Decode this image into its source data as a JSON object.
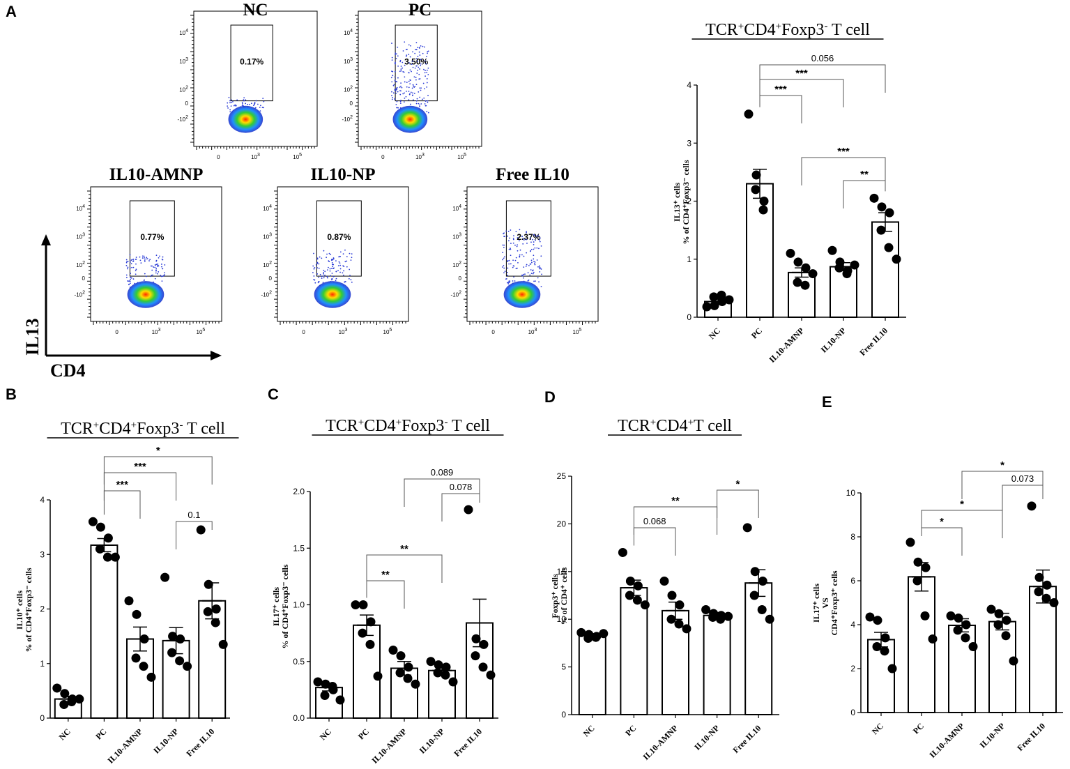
{
  "figure": {
    "panel_labels": {
      "A": "A",
      "B": "B",
      "C": "C",
      "D": "D",
      "E": "E"
    },
    "flow": {
      "y_axis_label": "IL13",
      "x_axis_label": "CD4",
      "x_ticks": [
        "0",
        "10",
        "10",
        "10"
      ],
      "x_tick_exps": [
        "",
        "3",
        "5",
        ""
      ],
      "y_ticks": [
        "10",
        "10",
        "10",
        "0",
        "-10"
      ],
      "y_tick_exps": [
        "4",
        "3",
        "2",
        "",
        "2"
      ],
      "plots": [
        {
          "title": "NC",
          "gate_percent": "0.17%",
          "spread": 0.15
        },
        {
          "title": "PC",
          "gate_percent": "3.50%",
          "spread": 1.0
        },
        {
          "title": "IL10-AMNP",
          "gate_percent": "0.77%",
          "spread": 0.45
        },
        {
          "title": "IL10-NP",
          "gate_percent": "0.87%",
          "spread": 0.5
        },
        {
          "title": "Free IL10",
          "gate_percent": "2.37%",
          "spread": 0.8
        }
      ]
    }
  },
  "chart_data": [
    {
      "id": "A",
      "type": "bar",
      "title_parts": [
        "TCR",
        "+",
        "CD4",
        "+",
        "Foxp3",
        "-",
        " T cell"
      ],
      "ylabel_line1": "IL13⁺ cells",
      "ylabel_line2": "% of CD4⁺Foxp3⁻ cells",
      "categories": [
        "NC",
        "PC",
        "IL10-AMNP",
        "IL10-NP",
        "Free IL10"
      ],
      "values": [
        0.27,
        2.3,
        0.77,
        0.87,
        1.64
      ],
      "errors": [
        0.05,
        0.25,
        0.08,
        0.07,
        0.16
      ],
      "points": [
        [
          0.18,
          0.2,
          0.27,
          0.35,
          0.38,
          0.3
        ],
        [
          3.5,
          2.45,
          2.0,
          2.2,
          1.85
        ],
        [
          1.1,
          0.95,
          0.85,
          0.6,
          0.55,
          0.75
        ],
        [
          1.15,
          0.95,
          0.8,
          0.85,
          0.75,
          0.9
        ],
        [
          2.05,
          1.9,
          1.8,
          1.5,
          1.2,
          1.0
        ]
      ],
      "ylim": [
        0,
        4
      ],
      "yticks": [
        "0",
        "1",
        "2",
        "3",
        "4"
      ],
      "annotations": [
        {
          "from": 1,
          "to": 2,
          "label": "***"
        },
        {
          "from": 1,
          "to": 3,
          "label": "***"
        },
        {
          "from": 1,
          "to": 4,
          "label": "0.056"
        },
        {
          "from": 2,
          "to": 4,
          "label": "***"
        },
        {
          "from": 3,
          "to": 4,
          "label": "**"
        }
      ]
    },
    {
      "id": "B",
      "type": "bar",
      "title_parts": [
        "TCR",
        "+",
        "CD4",
        "+",
        "Foxp3",
        "-",
        " T cell"
      ],
      "ylabel_line1": "IL10⁺ cells",
      "ylabel_line2": "% of CD4⁺Foxp3⁻ cells",
      "categories": [
        "NC",
        "PC",
        "IL10-AMNP",
        "IL10-NP",
        "Free IL10"
      ],
      "values": [
        0.35,
        3.17,
        1.45,
        1.42,
        2.15
      ],
      "errors": [
        0.05,
        0.12,
        0.22,
        0.24,
        0.33
      ],
      "points": [
        [
          0.55,
          0.45,
          0.35,
          0.25,
          0.3,
          0.35
        ],
        [
          3.6,
          3.5,
          3.3,
          3.1,
          2.95,
          2.95
        ],
        [
          2.15,
          1.9,
          1.45,
          1.1,
          0.95,
          0.75
        ],
        [
          2.58,
          1.5,
          1.45,
          1.2,
          1.05,
          0.95
        ],
        [
          3.45,
          2.45,
          2.0,
          1.95,
          1.75,
          1.35
        ]
      ],
      "ylim": [
        0,
        4
      ],
      "yticks": [
        "0",
        "1",
        "2",
        "3",
        "4"
      ],
      "annotations": [
        {
          "from": 1,
          "to": 2,
          "label": "***"
        },
        {
          "from": 1,
          "to": 3,
          "label": "***"
        },
        {
          "from": 1,
          "to": 4,
          "label": "*"
        },
        {
          "from": 3,
          "to": 4,
          "label": "0.1"
        }
      ]
    },
    {
      "id": "C",
      "type": "bar",
      "title_parts": [
        "TCR",
        "+",
        "CD4",
        "+",
        "Foxp3",
        "-",
        " T cell"
      ],
      "ylabel_line1": "IL17⁺ cells",
      "ylabel_line2": "% of CD4⁺Foxp3⁻ cells",
      "categories": [
        "NC",
        "PC",
        "IL10-AMNP",
        "IL10-NP",
        "Free IL10"
      ],
      "values": [
        0.27,
        0.82,
        0.44,
        0.42,
        0.84
      ],
      "errors": [
        0.03,
        0.09,
        0.06,
        0.04,
        0.21
      ],
      "points": [
        [
          0.32,
          0.3,
          0.25,
          0.2,
          0.28,
          0.16
        ],
        [
          1.0,
          1.0,
          0.85,
          0.75,
          0.65,
          0.37
        ],
        [
          0.6,
          0.55,
          0.45,
          0.4,
          0.35,
          0.3
        ],
        [
          0.5,
          0.47,
          0.45,
          0.4,
          0.38,
          0.32
        ],
        [
          1.84,
          0.7,
          0.65,
          0.55,
          0.45,
          0.38
        ]
      ],
      "ylim": [
        0,
        2.0
      ],
      "yticks": [
        "0.0",
        "0.5",
        "1.0",
        "1.5",
        "2.0"
      ],
      "annotations": [
        {
          "from": 1,
          "to": 2,
          "label": "**"
        },
        {
          "from": 1,
          "to": 3,
          "label": "**"
        },
        {
          "from": 2,
          "to": 4,
          "label": "0.089"
        },
        {
          "from": 3,
          "to": 4,
          "label": "0.078"
        }
      ]
    },
    {
      "id": "D",
      "type": "bar",
      "title_parts": [
        "TCR",
        "+",
        "CD4",
        "+",
        "T cell"
      ],
      "ylabel_line1": "Foxp3⁺ cells",
      "ylabel_line2": "% of CD4⁺ cells",
      "categories": [
        "NC",
        "PC",
        "IL10-AMNP",
        "IL10-NP",
        "Free IL10"
      ],
      "values": [
        8.3,
        13.3,
        10.9,
        10.4,
        13.8
      ],
      "errors": [
        0.2,
        0.8,
        0.9,
        0.3,
        1.4
      ],
      "points": [
        [
          8.6,
          8.4,
          8.2,
          8.0,
          8.1,
          8.5
        ],
        [
          17.0,
          14.0,
          13.5,
          12.5,
          12.0,
          11.5
        ],
        [
          14.0,
          12.5,
          11.5,
          10.0,
          9.5,
          9.0
        ],
        [
          11.0,
          10.6,
          10.4,
          10.2,
          10.0,
          10.3
        ],
        [
          19.6,
          15.0,
          14.0,
          12.5,
          11.0,
          10.0
        ]
      ],
      "ylim": [
        0,
        25
      ],
      "yticks": [
        "0",
        "5",
        "10",
        "15",
        "20",
        "25"
      ],
      "annotations": [
        {
          "from": 1,
          "to": 2,
          "label": "0.068"
        },
        {
          "from": 1,
          "to": 3,
          "label": "**"
        },
        {
          "from": 3,
          "to": 4,
          "label": "*"
        }
      ]
    },
    {
      "id": "E",
      "type": "bar",
      "title_parts": [],
      "ylabel_line1": "IL17⁺ cells",
      "ylabel_line2": "VS",
      "ylabel_line3": "CD4⁺Foxp3⁺ cells",
      "categories": [
        "NC",
        "PC",
        "IL10-AMNP",
        "IL10-NP",
        "Free IL10"
      ],
      "values": [
        3.32,
        6.18,
        3.97,
        4.14,
        5.74
      ],
      "errors": [
        0.33,
        0.65,
        0.3,
        0.38,
        0.75
      ],
      "points": [
        [
          4.35,
          4.2,
          3.4,
          3.0,
          2.8,
          2.0
        ],
        [
          7.75,
          6.85,
          6.6,
          6.0,
          4.4,
          3.35
        ],
        [
          4.4,
          4.3,
          4.0,
          3.75,
          3.4,
          3.0
        ],
        [
          4.7,
          4.5,
          4.2,
          4.0,
          3.5,
          2.35
        ],
        [
          9.4,
          6.15,
          5.8,
          5.5,
          5.2,
          5.0
        ]
      ],
      "ylim": [
        0,
        10
      ],
      "yticks": [
        "0",
        "2",
        "4",
        "6",
        "8",
        "10"
      ],
      "annotations": [
        {
          "from": 1,
          "to": 2,
          "label": "*"
        },
        {
          "from": 1,
          "to": 3,
          "label": "*"
        },
        {
          "from": 2,
          "to": 4,
          "label": "*"
        },
        {
          "from": 3,
          "to": 4,
          "label": "0.073"
        }
      ]
    }
  ]
}
